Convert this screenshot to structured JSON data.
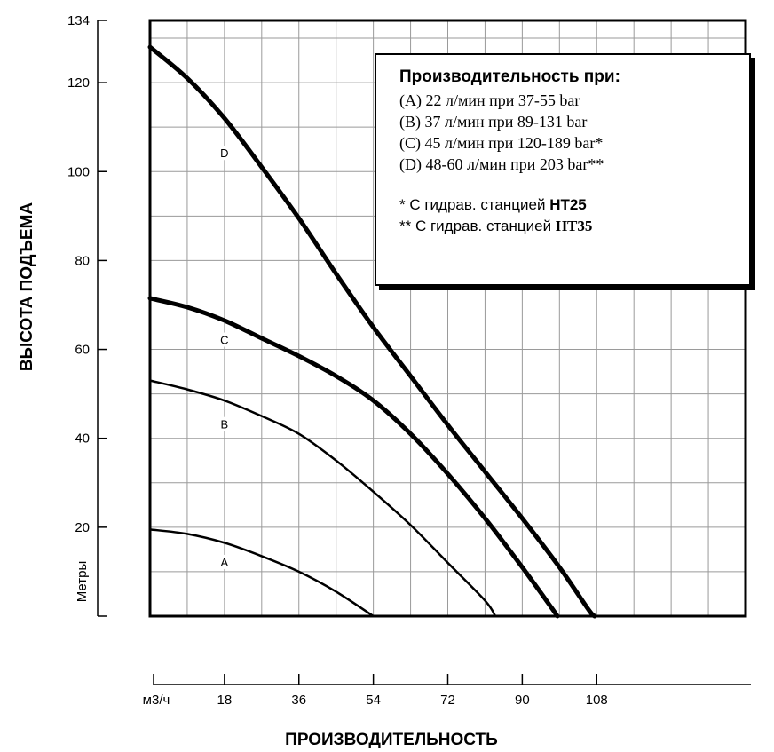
{
  "chart_data": {
    "type": "line",
    "xlabel": "ПРОИЗВОДИТЕЛЬНОСТЬ",
    "ylabel": "ВЫСОТА ПОДЪЕМА",
    "x_unit": "м3/ч",
    "y_unit": "Метры",
    "xlim": [
      0,
      144
    ],
    "ylim": [
      0,
      134
    ],
    "x_ticks": [
      18,
      36,
      54,
      72,
      90,
      108
    ],
    "y_ticks": [
      20,
      40,
      60,
      80,
      100,
      120,
      134
    ],
    "grid": true,
    "series": [
      {
        "name": "A",
        "width": 2.5,
        "label_point": [
          18,
          12
        ],
        "points": [
          [
            0,
            19.5
          ],
          [
            9,
            18.5
          ],
          [
            18,
            16.5
          ],
          [
            27,
            13.5
          ],
          [
            36,
            10
          ],
          [
            45,
            5.5
          ],
          [
            54,
            0
          ]
        ]
      },
      {
        "name": "B",
        "width": 2.5,
        "label_point": [
          18,
          43
        ],
        "points": [
          [
            0,
            53
          ],
          [
            9,
            51
          ],
          [
            18,
            48.5
          ],
          [
            27,
            45
          ],
          [
            36,
            41
          ],
          [
            45,
            35
          ],
          [
            54,
            28
          ],
          [
            63,
            20.5
          ],
          [
            72,
            12
          ],
          [
            81,
            3.5
          ],
          [
            83.5,
            0
          ]
        ]
      },
      {
        "name": "C",
        "width": 5,
        "label_point": [
          18,
          62
        ],
        "points": [
          [
            0,
            71.5
          ],
          [
            9,
            69.5
          ],
          [
            18,
            66.5
          ],
          [
            27,
            62.5
          ],
          [
            36,
            58.5
          ],
          [
            45,
            54
          ],
          [
            54,
            48.5
          ],
          [
            63,
            41
          ],
          [
            72,
            32
          ],
          [
            81,
            22
          ],
          [
            90,
            11
          ],
          [
            97,
            2
          ],
          [
            98.5,
            0
          ]
        ]
      },
      {
        "name": "D",
        "width": 5,
        "label_point": [
          18,
          104
        ],
        "points": [
          [
            0,
            128
          ],
          [
            9,
            121
          ],
          [
            18,
            112
          ],
          [
            27,
            101
          ],
          [
            36,
            89.5
          ],
          [
            45,
            77
          ],
          [
            54,
            65
          ],
          [
            63,
            54
          ],
          [
            72,
            43
          ],
          [
            81,
            32.5
          ],
          [
            90,
            22
          ],
          [
            99,
            11
          ],
          [
            106,
            1.5
          ],
          [
            107.5,
            0
          ]
        ]
      }
    ]
  },
  "legend": {
    "title": "Производительность при",
    "title_suffix": ":",
    "items": [
      "(A) 22 л/мин при 37-55 bar",
      "(B) 37 л/мин при 89-131 bar",
      "(C) 45 л/мин при 120-189 bar*",
      "(D) 48-60 л/мин при 203 bar**"
    ],
    "notes": [
      {
        "prefix": "* С гидрав. станцией ",
        "model": "HT25"
      },
      {
        "prefix": "** С гидрав. станцией ",
        "model": "HT35"
      }
    ]
  }
}
